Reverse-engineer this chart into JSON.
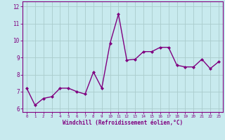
{
  "x": [
    0,
    1,
    2,
    3,
    4,
    5,
    6,
    7,
    8,
    9,
    10,
    11,
    12,
    13,
    14,
    15,
    16,
    17,
    18,
    19,
    20,
    21,
    22,
    23
  ],
  "y": [
    7.2,
    6.2,
    6.6,
    6.7,
    7.2,
    7.2,
    7.0,
    6.85,
    8.15,
    7.2,
    9.85,
    11.55,
    8.85,
    8.9,
    9.35,
    9.35,
    9.6,
    9.6,
    8.55,
    8.45,
    8.45,
    8.9,
    8.35,
    8.75
  ],
  "line_color": "#800080",
  "marker": "D",
  "marker_size": 2,
  "background_color": "#c8eaee",
  "grid_color": "#aacccc",
  "xlabel": "Windchill (Refroidissement éolien,°C)",
  "xlim": [
    -0.5,
    23.5
  ],
  "ylim": [
    5.8,
    12.3
  ],
  "yticks": [
    6,
    7,
    8,
    9,
    10,
    11,
    12
  ],
  "xticks": [
    0,
    1,
    2,
    3,
    4,
    5,
    6,
    7,
    8,
    9,
    10,
    11,
    12,
    13,
    14,
    15,
    16,
    17,
    18,
    19,
    20,
    21,
    22,
    23
  ],
  "line_width": 1.0,
  "tick_color": "#800080",
  "label_color": "#800080",
  "spine_color": "#800080",
  "xlabel_fontsize": 5.5,
  "xtick_fontsize": 4.2,
  "ytick_fontsize": 5.5
}
